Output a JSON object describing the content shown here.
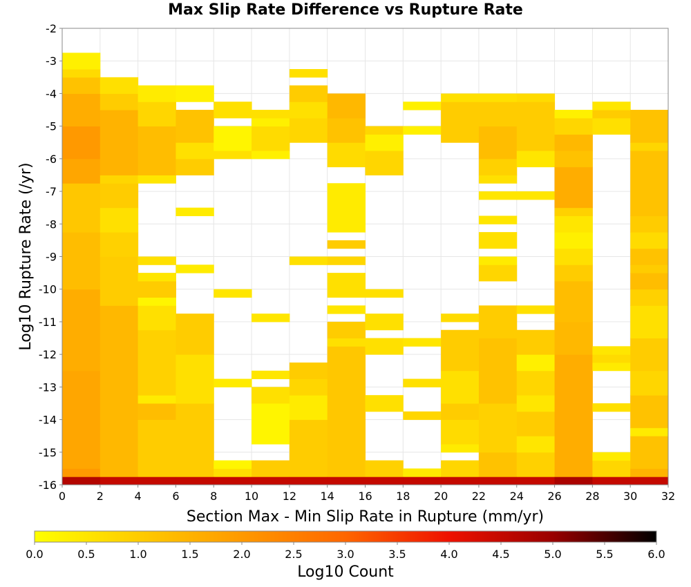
{
  "chart_data": {
    "type": "heatmap",
    "title": "Max Slip Rate Difference vs Rupture Rate",
    "xlabel": "Section Max - Min Slip Rate in Rupture (mm/yr)",
    "ylabel": "Log10 Rupture Rate (/yr)",
    "xlim": [
      0,
      32
    ],
    "ylim": [
      -16,
      -2
    ],
    "x_bin_width": 2,
    "y_bin_height": 0.25,
    "x_ticks": [
      0,
      2,
      4,
      6,
      8,
      10,
      12,
      14,
      16,
      18,
      20,
      22,
      24,
      26,
      28,
      30,
      32
    ],
    "y_ticks": [
      -2,
      -3,
      -4,
      -5,
      -6,
      -7,
      -8,
      -9,
      -10,
      -11,
      -12,
      -13,
      -14,
      -15,
      -16
    ],
    "grid": true,
    "colorbar": {
      "label": "Log10 Count",
      "range": [
        0,
        6
      ],
      "ticks": [
        0.0,
        0.5,
        1.0,
        1.5,
        2.0,
        2.5,
        3.0,
        3.5,
        4.0,
        4.5,
        5.0,
        5.5,
        6.0
      ],
      "tick_labels": [
        "0.0",
        "0.5",
        "1.0",
        "1.5",
        "2.0",
        "2.5",
        "3.0",
        "3.5",
        "4.0",
        "4.5",
        "5.0",
        "5.5",
        "6.0"
      ],
      "colors": [
        "#ffff00",
        "#ffcc00",
        "#ff9900",
        "#ff6600",
        "#ee1100",
        "#990000",
        "#000000"
      ]
    },
    "cells": [
      {
        "x": 0,
        "rows": [
          [
            -16.0,
            -15.75,
            4.7
          ],
          [
            -15.75,
            -15.5,
            2.0
          ],
          [
            -15.5,
            -12.5,
            1.75
          ],
          [
            -12.5,
            -10.0,
            1.6
          ],
          [
            -10.0,
            -8.25,
            1.3
          ],
          [
            -8.25,
            -6.75,
            1.1
          ],
          [
            -6.75,
            -6.0,
            1.75
          ],
          [
            -6.0,
            -5.0,
            2.0
          ],
          [
            -5.0,
            -4.0,
            1.6
          ],
          [
            -4.0,
            -3.5,
            1.2
          ],
          [
            -3.5,
            -3.25,
            0.7
          ],
          [
            -3.25,
            -2.75,
            0.3
          ]
        ]
      },
      {
        "x": 2,
        "rows": [
          [
            -16.0,
            -15.75,
            4.5
          ],
          [
            -15.75,
            -10.5,
            1.4
          ],
          [
            -10.5,
            -9.0,
            1.0
          ],
          [
            -9.0,
            -8.25,
            0.9
          ],
          [
            -8.25,
            -7.5,
            0.6
          ],
          [
            -7.5,
            -6.75,
            1.0
          ],
          [
            -6.75,
            -6.5,
            0.8
          ],
          [
            -6.5,
            -4.5,
            1.5
          ],
          [
            -4.5,
            -4.0,
            1.0
          ],
          [
            -4.0,
            -3.5,
            0.6
          ]
        ]
      },
      {
        "x": 4,
        "rows": [
          [
            -16.0,
            -15.75,
            4.5
          ],
          [
            -15.75,
            -14.0,
            1.0
          ],
          [
            -14.0,
            -13.5,
            1.3
          ],
          [
            -13.5,
            -13.25,
            0.4
          ],
          [
            -13.25,
            -11.25,
            0.9
          ],
          [
            -11.25,
            -10.5,
            0.6
          ],
          [
            -10.5,
            -10.25,
            0.2
          ],
          [
            -10.25,
            -9.75,
            1.0
          ],
          [
            -9.75,
            -9.5,
            0.5
          ],
          [
            -9.25,
            -9.0,
            0.6
          ],
          [
            -6.75,
            -6.5,
            0.5
          ],
          [
            -6.5,
            -5.0,
            1.3
          ],
          [
            -5.0,
            -4.25,
            0.8
          ],
          [
            -4.25,
            -3.75,
            0.4
          ]
        ]
      },
      {
        "x": 6,
        "rows": [
          [
            -16.0,
            -15.75,
            4.5
          ],
          [
            -15.75,
            -13.5,
            1.0
          ],
          [
            -13.5,
            -12.0,
            0.6
          ],
          [
            -12.0,
            -10.75,
            1.0
          ],
          [
            -9.5,
            -9.25,
            0.4
          ],
          [
            -7.75,
            -7.5,
            0.4
          ],
          [
            -6.5,
            -6.0,
            1.0
          ],
          [
            -6.0,
            -5.5,
            0.6
          ],
          [
            -5.5,
            -4.5,
            1.2
          ],
          [
            -4.25,
            -3.75,
            0.3
          ]
        ]
      },
      {
        "x": 8,
        "rows": [
          [
            -16.0,
            -15.75,
            4.5
          ],
          [
            -15.75,
            -15.5,
            0.6
          ],
          [
            -15.5,
            -15.25,
            0.2
          ],
          [
            -13.0,
            -12.75,
            0.4
          ],
          [
            -10.25,
            -10.0,
            0.5
          ],
          [
            -6.0,
            -5.75,
            0.6
          ],
          [
            -5.75,
            -5.0,
            0.2
          ],
          [
            -4.75,
            -4.25,
            0.6
          ]
        ]
      },
      {
        "x": 10,
        "rows": [
          [
            -16.0,
            -15.75,
            4.5
          ],
          [
            -15.75,
            -15.25,
            1.0
          ],
          [
            -14.75,
            -13.5,
            0.2
          ],
          [
            -13.5,
            -13.0,
            0.6
          ],
          [
            -12.75,
            -12.5,
            0.5
          ],
          [
            -11.0,
            -10.75,
            0.5
          ],
          [
            -6.0,
            -5.75,
            0.3
          ],
          [
            -5.75,
            -5.0,
            0.7
          ],
          [
            -5.0,
            -4.75,
            0.3
          ],
          [
            -4.75,
            -4.5,
            0.6
          ]
        ]
      },
      {
        "x": 12,
        "rows": [
          [
            -16.0,
            -15.75,
            4.5
          ],
          [
            -15.75,
            -14.0,
            1.0
          ],
          [
            -14.0,
            -13.25,
            0.4
          ],
          [
            -13.25,
            -12.75,
            0.8
          ],
          [
            -12.75,
            -12.25,
            1.0
          ],
          [
            -9.25,
            -9.0,
            0.6
          ],
          [
            -5.5,
            -4.75,
            0.8
          ],
          [
            -4.75,
            -4.25,
            0.6
          ],
          [
            -4.25,
            -3.75,
            1.0
          ],
          [
            -3.5,
            -3.25,
            0.6
          ]
        ]
      },
      {
        "x": 14,
        "rows": [
          [
            -16.0,
            -15.75,
            4.5
          ],
          [
            -15.75,
            -11.75,
            1.1
          ],
          [
            -11.75,
            -11.5,
            0.6
          ],
          [
            -11.5,
            -11.0,
            1.0
          ],
          [
            -10.75,
            -10.5,
            0.5
          ],
          [
            -10.25,
            -9.5,
            0.6
          ],
          [
            -9.25,
            -9.0,
            0.8
          ],
          [
            -8.75,
            -8.5,
            1.0
          ],
          [
            -8.25,
            -6.75,
            0.4
          ],
          [
            -6.25,
            -5.5,
            0.7
          ],
          [
            -5.5,
            -4.75,
            1.2
          ],
          [
            -4.75,
            -4.0,
            1.4
          ]
        ]
      },
      {
        "x": 16,
        "rows": [
          [
            -16.0,
            -15.75,
            4.5
          ],
          [
            -15.75,
            -15.25,
            0.9
          ],
          [
            -13.75,
            -13.25,
            0.6
          ],
          [
            -12.0,
            -11.5,
            0.6
          ],
          [
            -11.25,
            -10.75,
            0.6
          ],
          [
            -10.25,
            -10.0,
            0.6
          ],
          [
            -6.5,
            -5.75,
            0.8
          ],
          [
            -5.75,
            -5.25,
            0.3
          ],
          [
            -5.25,
            -5.0,
            0.8
          ]
        ]
      },
      {
        "x": 18,
        "rows": [
          [
            -16.0,
            -15.75,
            4.5
          ],
          [
            -15.75,
            -15.5,
            0.4
          ],
          [
            -14.0,
            -13.75,
            0.8
          ],
          [
            -13.0,
            -12.75,
            0.6
          ],
          [
            -11.75,
            -11.5,
            0.5
          ],
          [
            -5.25,
            -5.0,
            0.3
          ],
          [
            -4.5,
            -4.25,
            0.3
          ]
        ]
      },
      {
        "x": 20,
        "rows": [
          [
            -16.0,
            -15.75,
            4.5
          ],
          [
            -15.75,
            -15.25,
            0.8
          ],
          [
            -15.0,
            -14.75,
            0.4
          ],
          [
            -14.75,
            -14.0,
            0.7
          ],
          [
            -14.0,
            -13.5,
            1.0
          ],
          [
            -13.5,
            -12.5,
            0.6
          ],
          [
            -12.5,
            -11.25,
            1.0
          ],
          [
            -11.0,
            -10.75,
            0.7
          ],
          [
            -5.5,
            -4.25,
            1.0
          ],
          [
            -4.25,
            -4.0,
            0.6
          ]
        ]
      },
      {
        "x": 22,
        "rows": [
          [
            -16.0,
            -15.75,
            4.5
          ],
          [
            -15.75,
            -15.0,
            1.2
          ],
          [
            -15.0,
            -13.5,
            0.9
          ],
          [
            -13.5,
            -11.5,
            1.2
          ],
          [
            -11.5,
            -10.5,
            1.0
          ],
          [
            -9.75,
            -9.25,
            0.8
          ],
          [
            -9.25,
            -9.0,
            0.4
          ],
          [
            -8.75,
            -8.25,
            0.6
          ],
          [
            -8.0,
            -7.75,
            0.5
          ],
          [
            -7.25,
            -7.0,
            0.5
          ],
          [
            -6.75,
            -6.5,
            0.6
          ],
          [
            -6.5,
            -6.0,
            0.9
          ],
          [
            -6.0,
            -5.0,
            1.3
          ],
          [
            -5.0,
            -4.25,
            1.0
          ],
          [
            -4.25,
            -4.0,
            0.6
          ]
        ]
      },
      {
        "x": 24,
        "rows": [
          [
            -16.0,
            -15.75,
            4.5
          ],
          [
            -15.75,
            -15.0,
            0.9
          ],
          [
            -15.0,
            -14.5,
            0.5
          ],
          [
            -14.5,
            -13.75,
            1.0
          ],
          [
            -13.75,
            -13.25,
            0.5
          ],
          [
            -13.25,
            -12.5,
            0.8
          ],
          [
            -12.5,
            -12.0,
            0.3
          ],
          [
            -12.0,
            -11.25,
            1.0
          ],
          [
            -10.75,
            -10.5,
            0.6
          ],
          [
            -7.25,
            -7.0,
            0.5
          ],
          [
            -6.25,
            -5.75,
            0.5
          ],
          [
            -5.75,
            -4.25,
            1.0
          ],
          [
            -4.25,
            -4.0,
            0.7
          ]
        ]
      },
      {
        "x": 26,
        "rows": [
          [
            -16.0,
            -15.75,
            4.8
          ],
          [
            -15.75,
            -12.0,
            1.6
          ],
          [
            -12.0,
            -11.0,
            1.4
          ],
          [
            -11.0,
            -9.75,
            1.3
          ],
          [
            -9.75,
            -9.25,
            1.0
          ],
          [
            -9.25,
            -8.75,
            0.6
          ],
          [
            -8.75,
            -8.25,
            0.3
          ],
          [
            -8.25,
            -7.75,
            0.5
          ],
          [
            -7.75,
            -7.5,
            0.9
          ],
          [
            -7.5,
            -6.25,
            1.6
          ],
          [
            -6.25,
            -5.75,
            1.2
          ],
          [
            -5.75,
            -5.25,
            1.4
          ],
          [
            -5.25,
            -4.75,
            0.8
          ],
          [
            -4.75,
            -4.5,
            0.3
          ]
        ]
      },
      {
        "x": 28,
        "rows": [
          [
            -16.0,
            -15.75,
            4.5
          ],
          [
            -15.75,
            -15.25,
            0.8
          ],
          [
            -15.25,
            -15.0,
            0.4
          ],
          [
            -13.75,
            -13.5,
            0.6
          ],
          [
            -12.5,
            -12.25,
            0.4
          ],
          [
            -12.25,
            -12.0,
            0.7
          ],
          [
            -12.0,
            -11.75,
            0.5
          ],
          [
            -5.25,
            -4.75,
            0.6
          ],
          [
            -4.75,
            -4.5,
            1.0
          ],
          [
            -4.5,
            -4.25,
            0.5
          ]
        ]
      },
      {
        "x": 30,
        "rows": [
          [
            -16.0,
            -15.75,
            4.5
          ],
          [
            -15.75,
            -15.5,
            1.5
          ],
          [
            -15.5,
            -14.5,
            1.2
          ],
          [
            -14.5,
            -14.25,
            0.4
          ],
          [
            -14.25,
            -13.25,
            1.2
          ],
          [
            -13.25,
            -12.5,
            0.8
          ],
          [
            -12.5,
            -11.5,
            1.0
          ],
          [
            -11.5,
            -10.5,
            0.6
          ],
          [
            -10.5,
            -10.0,
            0.9
          ],
          [
            -10.0,
            -9.5,
            1.3
          ],
          [
            -9.5,
            -9.25,
            1.0
          ],
          [
            -9.25,
            -8.75,
            1.2
          ],
          [
            -8.75,
            -8.25,
            0.7
          ],
          [
            -8.25,
            -7.75,
            1.0
          ],
          [
            -7.75,
            -5.75,
            1.2
          ],
          [
            -5.75,
            -5.5,
            0.8
          ],
          [
            -5.5,
            -4.5,
            1.2
          ]
        ]
      }
    ]
  }
}
